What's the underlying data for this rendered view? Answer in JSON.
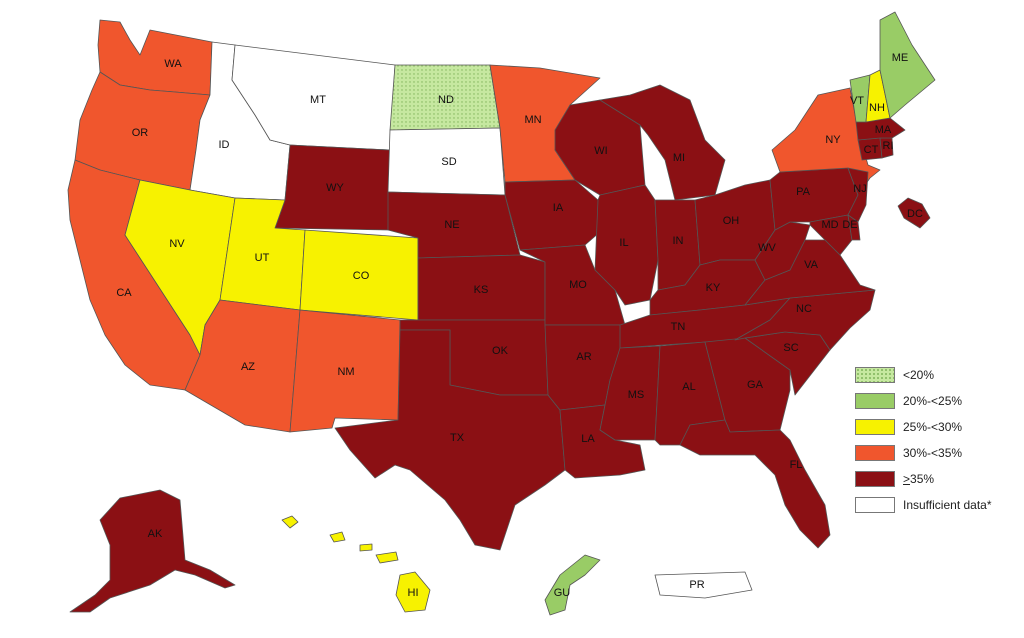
{
  "colors": {
    "lt20": "#c6e8a0",
    "c20_25": "#99cc66",
    "c25_30": "#f7f200",
    "c30_35": "#f0562d",
    "c35plus": "#8b1014",
    "insufficient": "#ffffff"
  },
  "legend": [
    {
      "key": "lt20",
      "label": "<20%"
    },
    {
      "key": "c20_25",
      "label": "20%-<25%"
    },
    {
      "key": "c25_30",
      "label": "25%-<30%"
    },
    {
      "key": "c30_35",
      "label": "30%-<35%"
    },
    {
      "key": "c35plus",
      "label_prefix": ">",
      "label_rest": "35%"
    },
    {
      "key": "insufficient",
      "label": "Insufficient data*"
    }
  ],
  "regions": [
    {
      "id": "WA",
      "label": "WA",
      "category": "c30_35"
    },
    {
      "id": "OR",
      "label": "OR",
      "category": "c30_35"
    },
    {
      "id": "CA",
      "label": "CA",
      "category": "c30_35"
    },
    {
      "id": "ID",
      "label": "ID",
      "category": "insufficient"
    },
    {
      "id": "MT",
      "label": "MT",
      "category": "insufficient"
    },
    {
      "id": "WY",
      "label": "WY",
      "category": "c35plus"
    },
    {
      "id": "NV",
      "label": "NV",
      "category": "c25_30"
    },
    {
      "id": "UT",
      "label": "UT",
      "category": "c25_30"
    },
    {
      "id": "CO",
      "label": "CO",
      "category": "c25_30"
    },
    {
      "id": "AZ",
      "label": "AZ",
      "category": "c30_35"
    },
    {
      "id": "NM",
      "label": "NM",
      "category": "c30_35"
    },
    {
      "id": "ND",
      "label": "ND",
      "category": "lt20"
    },
    {
      "id": "SD",
      "label": "SD",
      "category": "insufficient"
    },
    {
      "id": "NE",
      "label": "NE",
      "category": "c35plus"
    },
    {
      "id": "KS",
      "label": "KS",
      "category": "c35plus"
    },
    {
      "id": "OK",
      "label": "OK",
      "category": "c35plus"
    },
    {
      "id": "TX",
      "label": "TX",
      "category": "c35plus"
    },
    {
      "id": "MN",
      "label": "MN",
      "category": "c30_35"
    },
    {
      "id": "IA",
      "label": "IA",
      "category": "c35plus"
    },
    {
      "id": "MO",
      "label": "MO",
      "category": "c35plus"
    },
    {
      "id": "AR",
      "label": "AR",
      "category": "c35plus"
    },
    {
      "id": "LA",
      "label": "LA",
      "category": "c35plus"
    },
    {
      "id": "WI",
      "label": "WI",
      "category": "c35plus"
    },
    {
      "id": "IL",
      "label": "IL",
      "category": "c35plus"
    },
    {
      "id": "MI",
      "label": "MI",
      "category": "c35plus"
    },
    {
      "id": "IN",
      "label": "IN",
      "category": "c35plus"
    },
    {
      "id": "OH",
      "label": "OH",
      "category": "c35plus"
    },
    {
      "id": "KY",
      "label": "KY",
      "category": "c35plus"
    },
    {
      "id": "TN",
      "label": "TN",
      "category": "c35plus"
    },
    {
      "id": "MS",
      "label": "MS",
      "category": "c35plus"
    },
    {
      "id": "AL",
      "label": "AL",
      "category": "c35plus"
    },
    {
      "id": "GA",
      "label": "GA",
      "category": "c35plus"
    },
    {
      "id": "FL",
      "label": "FL",
      "category": "c35plus"
    },
    {
      "id": "SC",
      "label": "SC",
      "category": "c35plus"
    },
    {
      "id": "NC",
      "label": "NC",
      "category": "c35plus"
    },
    {
      "id": "VA",
      "label": "VA",
      "category": "c35plus"
    },
    {
      "id": "WV",
      "label": "WV",
      "category": "c35plus"
    },
    {
      "id": "PA",
      "label": "PA",
      "category": "c35plus"
    },
    {
      "id": "NY",
      "label": "NY",
      "category": "c30_35"
    },
    {
      "id": "NJ",
      "label": "NJ",
      "category": "c35plus"
    },
    {
      "id": "MD",
      "label": "MD",
      "category": "c35plus"
    },
    {
      "id": "DE",
      "label": "DE",
      "category": "c35plus"
    },
    {
      "id": "DC",
      "label": "DC",
      "category": "c35plus"
    },
    {
      "id": "CT",
      "label": "CT",
      "category": "c35plus"
    },
    {
      "id": "RI",
      "label": "RI",
      "category": "c35plus"
    },
    {
      "id": "MA",
      "label": "MA",
      "category": "c35plus"
    },
    {
      "id": "VT",
      "label": "VT",
      "category": "c20_25"
    },
    {
      "id": "NH",
      "label": "NH",
      "category": "c25_30"
    },
    {
      "id": "ME",
      "label": "ME",
      "category": "c20_25"
    },
    {
      "id": "AK",
      "label": "AK",
      "category": "c35plus"
    },
    {
      "id": "HI",
      "label": "HI",
      "category": "c25_30"
    },
    {
      "id": "GU",
      "label": "GU",
      "category": "c20_25"
    },
    {
      "id": "PR",
      "label": "PR",
      "category": "insufficient"
    }
  ]
}
